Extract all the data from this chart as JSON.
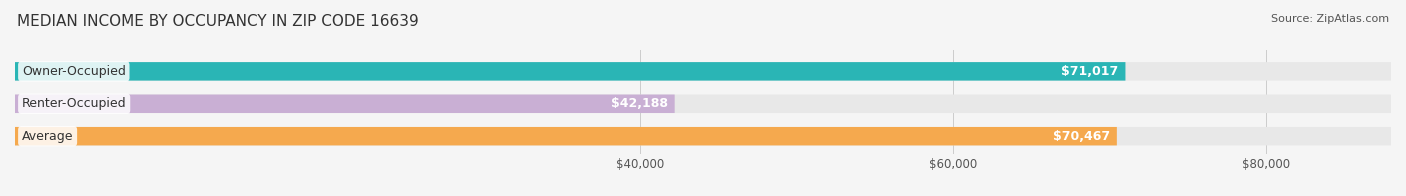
{
  "title": "MEDIAN INCOME BY OCCUPANCY IN ZIP CODE 16639",
  "source": "Source: ZipAtlas.com",
  "categories": [
    "Owner-Occupied",
    "Renter-Occupied",
    "Average"
  ],
  "values": [
    71017,
    42188,
    70467
  ],
  "bar_colors": [
    "#2ab5b5",
    "#c9afd4",
    "#f5a94e"
  ],
  "value_labels": [
    "$71,017",
    "$42,188",
    "$70,467"
  ],
  "xlim": [
    0,
    88000
  ],
  "xticks": [
    40000,
    60000,
    80000
  ],
  "xticklabels": [
    "$40,000",
    "$60,000",
    "$80,000"
  ],
  "bar_height": 0.55,
  "background_color": "#f5f5f5",
  "bar_bg_color": "#e8e8e8",
  "label_fontsize": 9,
  "title_fontsize": 11,
  "value_fontsize": 9
}
